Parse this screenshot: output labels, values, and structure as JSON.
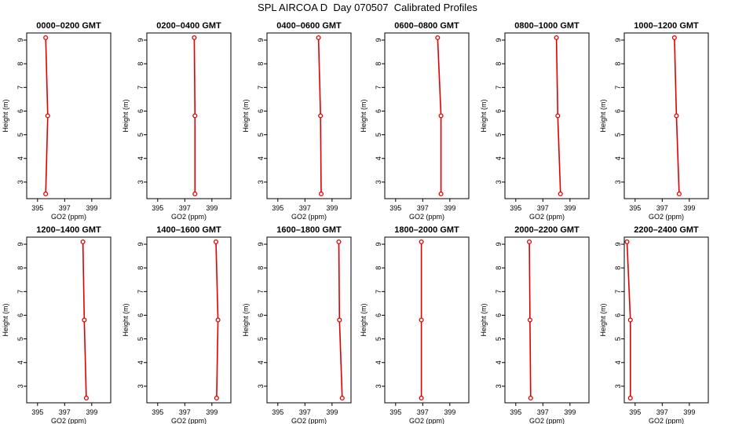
{
  "figure_title": "SPL AIRCOA D  Day 070507  Calibrated Profiles",
  "colors": {
    "profile": "#e00000",
    "axes": "#000000"
  },
  "chart_data": [
    {
      "type": "line",
      "title": "0000–0200 GMT",
      "xlabel": "GO2 (ppm)",
      "ylabel": "Height (m)",
      "x_ticks": [
        395,
        397,
        399
      ],
      "y_ticks": [
        3,
        4,
        5,
        6,
        7,
        8,
        9
      ],
      "xlim": [
        394.2,
        400.4
      ],
      "ylim": [
        2.3,
        9.3
      ],
      "grid": false,
      "series": [
        {
          "x": [
            395.6,
            395.75,
            395.6
          ],
          "y": [
            9.1,
            5.8,
            2.5
          ],
          "marker": "circle"
        }
      ]
    },
    {
      "type": "line",
      "title": "0200–0400 GMT",
      "xlabel": "GO2 (ppm)",
      "ylabel": "Height (m)",
      "x_ticks": [
        395,
        397,
        399
      ],
      "y_ticks": [
        3,
        4,
        5,
        6,
        7,
        8,
        9
      ],
      "xlim": [
        394.2,
        400.4
      ],
      "ylim": [
        2.3,
        9.3
      ],
      "grid": false,
      "series": [
        {
          "x": [
            397.7,
            397.75,
            397.75
          ],
          "y": [
            9.1,
            5.8,
            2.5
          ],
          "marker": "circle"
        }
      ]
    },
    {
      "type": "line",
      "title": "0400–0600 GMT",
      "xlabel": "GO2 (ppm)",
      "ylabel": "Height (m)",
      "x_ticks": [
        395,
        397,
        399
      ],
      "y_ticks": [
        3,
        4,
        5,
        6,
        7,
        8,
        9
      ],
      "xlim": [
        394.2,
        400.4
      ],
      "ylim": [
        2.3,
        9.3
      ],
      "grid": false,
      "series": [
        {
          "x": [
            398.0,
            398.15,
            398.2
          ],
          "y": [
            9.1,
            5.8,
            2.5
          ],
          "marker": "circle"
        }
      ]
    },
    {
      "type": "line",
      "title": "0600–0800 GMT",
      "xlabel": "GO2 (ppm)",
      "ylabel": "Height (m)",
      "x_ticks": [
        395,
        397,
        399
      ],
      "y_ticks": [
        3,
        4,
        5,
        6,
        7,
        8,
        9
      ],
      "xlim": [
        394.2,
        400.4
      ],
      "ylim": [
        2.3,
        9.3
      ],
      "grid": false,
      "series": [
        {
          "x": [
            398.1,
            398.35,
            398.35
          ],
          "y": [
            9.1,
            5.8,
            2.5
          ],
          "marker": "circle"
        }
      ]
    },
    {
      "type": "line",
      "title": "0800–1000 GMT",
      "xlabel": "GO2 (ppm)",
      "ylabel": "Height (m)",
      "x_ticks": [
        395,
        397,
        399
      ],
      "y_ticks": [
        3,
        4,
        5,
        6,
        7,
        8,
        9
      ],
      "xlim": [
        394.2,
        400.4
      ],
      "ylim": [
        2.3,
        9.3
      ],
      "grid": false,
      "series": [
        {
          "x": [
            398.0,
            398.1,
            398.3
          ],
          "y": [
            9.1,
            5.8,
            2.5
          ],
          "marker": "circle"
        }
      ]
    },
    {
      "type": "line",
      "title": "1000–1200 GMT",
      "xlabel": "GO2 (ppm)",
      "ylabel": "Height (m)",
      "x_ticks": [
        395,
        397,
        399
      ],
      "y_ticks": [
        3,
        4,
        5,
        6,
        7,
        8,
        9
      ],
      "xlim": [
        394.2,
        400.4
      ],
      "ylim": [
        2.3,
        9.3
      ],
      "grid": false,
      "series": [
        {
          "x": [
            397.9,
            398.05,
            398.25
          ],
          "y": [
            9.1,
            5.8,
            2.5
          ],
          "marker": "circle"
        }
      ]
    },
    {
      "type": "line",
      "title": "1200–1400 GMT",
      "xlabel": "GO2 (ppm)",
      "ylabel": "Height (m)",
      "x_ticks": [
        395,
        397,
        399
      ],
      "y_ticks": [
        3,
        4,
        5,
        6,
        7,
        8,
        9
      ],
      "xlim": [
        394.2,
        400.4
      ],
      "ylim": [
        2.3,
        9.3
      ],
      "grid": false,
      "series": [
        {
          "x": [
            398.35,
            398.45,
            398.6
          ],
          "y": [
            9.1,
            5.8,
            2.5
          ],
          "marker": "circle"
        }
      ]
    },
    {
      "type": "line",
      "title": "1400–1600 GMT",
      "xlabel": "GO2 (ppm)",
      "ylabel": "Height (m)",
      "x_ticks": [
        395,
        397,
        399
      ],
      "y_ticks": [
        3,
        4,
        5,
        6,
        7,
        8,
        9
      ],
      "xlim": [
        394.2,
        400.4
      ],
      "ylim": [
        2.3,
        9.3
      ],
      "grid": false,
      "series": [
        {
          "x": [
            399.3,
            399.45,
            399.35
          ],
          "y": [
            9.1,
            5.8,
            2.5
          ],
          "marker": "circle"
        }
      ]
    },
    {
      "type": "line",
      "title": "1600–1800 GMT",
      "xlabel": "GO2 (ppm)",
      "ylabel": "Height (m)",
      "x_ticks": [
        395,
        397,
        399
      ],
      "y_ticks": [
        3,
        4,
        5,
        6,
        7,
        8,
        9
      ],
      "xlim": [
        394.2,
        400.4
      ],
      "ylim": [
        2.3,
        9.3
      ],
      "grid": false,
      "series": [
        {
          "x": [
            399.5,
            399.55,
            399.75
          ],
          "y": [
            9.1,
            5.8,
            2.5
          ],
          "marker": "circle"
        }
      ]
    },
    {
      "type": "line",
      "title": "1800–2000 GMT",
      "xlabel": "GO2 (ppm)",
      "ylabel": "Height (m)",
      "x_ticks": [
        395,
        397,
        399
      ],
      "y_ticks": [
        3,
        4,
        5,
        6,
        7,
        8,
        9
      ],
      "xlim": [
        394.2,
        400.4
      ],
      "ylim": [
        2.3,
        9.3
      ],
      "grid": false,
      "series": [
        {
          "x": [
            396.9,
            396.9,
            396.9
          ],
          "y": [
            9.1,
            5.8,
            2.5
          ],
          "marker": "circle"
        }
      ]
    },
    {
      "type": "line",
      "title": "2000–2200 GMT",
      "xlabel": "GO2 (ppm)",
      "ylabel": "Height (m)",
      "x_ticks": [
        395,
        397,
        399
      ],
      "y_ticks": [
        3,
        4,
        5,
        6,
        7,
        8,
        9
      ],
      "xlim": [
        394.2,
        400.4
      ],
      "ylim": [
        2.3,
        9.3
      ],
      "grid": false,
      "series": [
        {
          "x": [
            396.0,
            396.05,
            396.1
          ],
          "y": [
            9.1,
            5.8,
            2.5
          ],
          "marker": "circle"
        }
      ]
    },
    {
      "type": "line",
      "title": "2200–2400 GMT",
      "xlabel": "GO2 (ppm)",
      "ylabel": "Height (m)",
      "x_ticks": [
        395,
        397,
        399
      ],
      "y_ticks": [
        3,
        4,
        5,
        6,
        7,
        8,
        9
      ],
      "xlim": [
        394.2,
        400.4
      ],
      "ylim": [
        2.3,
        9.3
      ],
      "grid": false,
      "series": [
        {
          "x": [
            394.4,
            394.65,
            394.65
          ],
          "y": [
            9.1,
            5.8,
            2.5
          ],
          "marker": "circle"
        }
      ]
    }
  ]
}
